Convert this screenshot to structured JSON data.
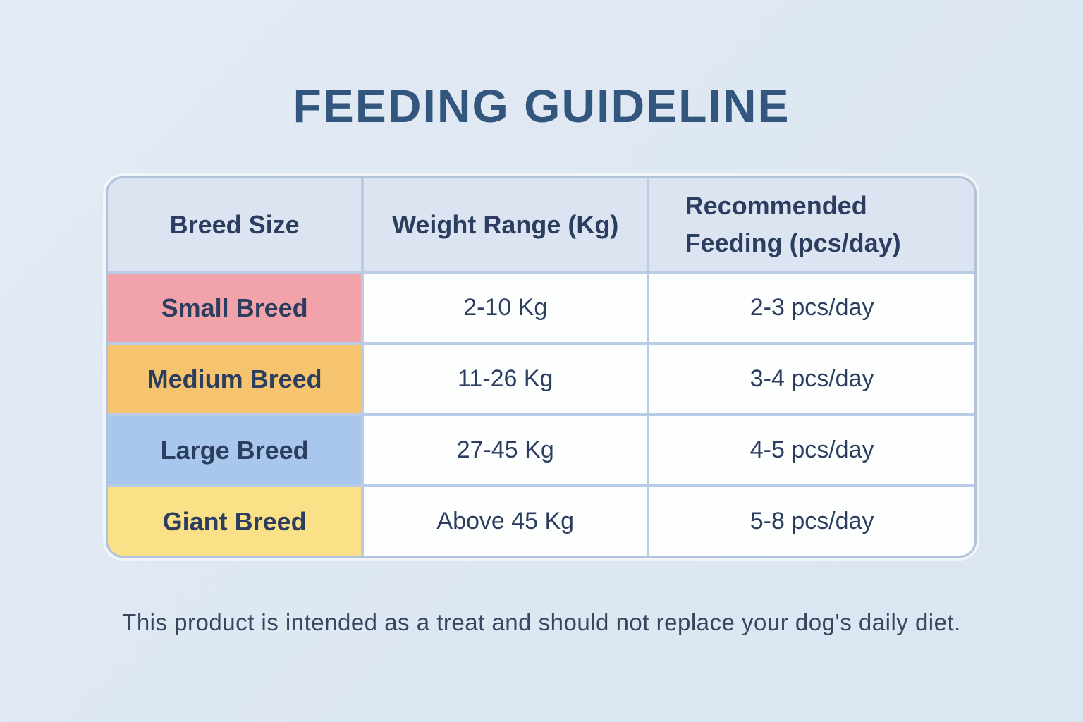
{
  "title": "FEEDING GUIDELINE",
  "table": {
    "headers": [
      "Breed Size",
      "Weight Range (Kg)",
      "Recommended Feeding (pcs/day)"
    ],
    "rows": [
      {
        "breed": "Small Breed",
        "weight": "2-10 Kg",
        "feeding": "2-3 pcs/day",
        "color": "#f2a3a9"
      },
      {
        "breed": "Medium Breed",
        "weight": "11-26 Kg",
        "feeding": "3-4 pcs/day",
        "color": "#f6c46e"
      },
      {
        "breed": "Large Breed",
        "weight": "27-45 Kg",
        "feeding": "4-5 pcs/day",
        "color": "#a9c6ec"
      },
      {
        "breed": "Giant Breed",
        "weight": "Above 45 Kg",
        "feeding": "5-8 pcs/day",
        "color": "#fae187"
      }
    ]
  },
  "footer_note": "This product is intended as a treat and should not replace your dog's daily diet.",
  "colors": {
    "page_bg": "#e0e8f2",
    "header_bg": "#dce3f1",
    "cell_bg": "#fdfefe",
    "grid_border": "#b9cce6",
    "title_text": "#33567e",
    "body_text": "#2c3e60"
  }
}
